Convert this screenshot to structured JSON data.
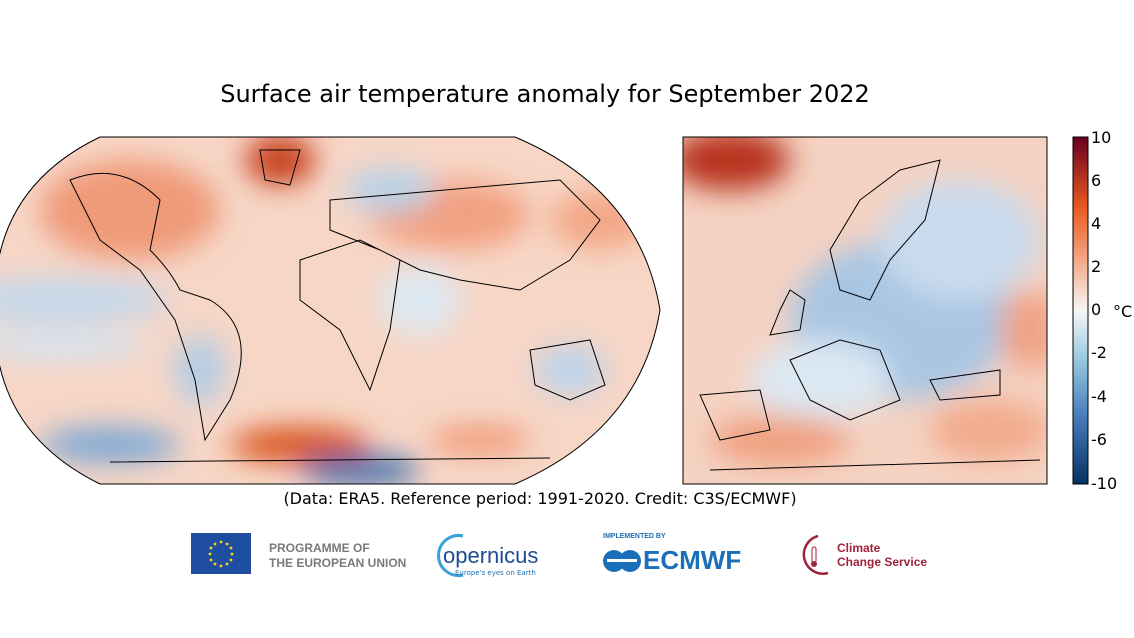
{
  "title": "Surface air temperature anomaly for September 2022",
  "credit": "(Data: ERA5.  Reference period: 1991-2020.  Credit: C3S/ECMWF)",
  "colorbar": {
    "unit": "°C",
    "ticks": [
      "10",
      "6",
      "4",
      "2",
      "0",
      "-2",
      "-4",
      "-6",
      "-10"
    ],
    "range": [
      -10,
      10
    ],
    "colors": {
      "max": "#67001f",
      "warm": "#e8581f",
      "light_warm": "#f4a582",
      "neutral": "#f7f7f7",
      "light_cool": "#92c5de",
      "cool": "#4393c3",
      "min": "#053061"
    }
  },
  "maps": {
    "global": {
      "projection": "Robinson"
    },
    "europe": {}
  },
  "logos": {
    "eu": {
      "line1": "PROGRAMME OF",
      "line2": "THE EUROPEAN UNION"
    },
    "copernicus": {
      "name": "opernicus",
      "tagline": "Europe's eyes on Earth"
    },
    "ecmwf": {
      "implemented_by": "IMPLEMENTED BY",
      "name": "ECMWF"
    },
    "c3s": {
      "line1": "Climate",
      "line2": "Change Service"
    }
  }
}
